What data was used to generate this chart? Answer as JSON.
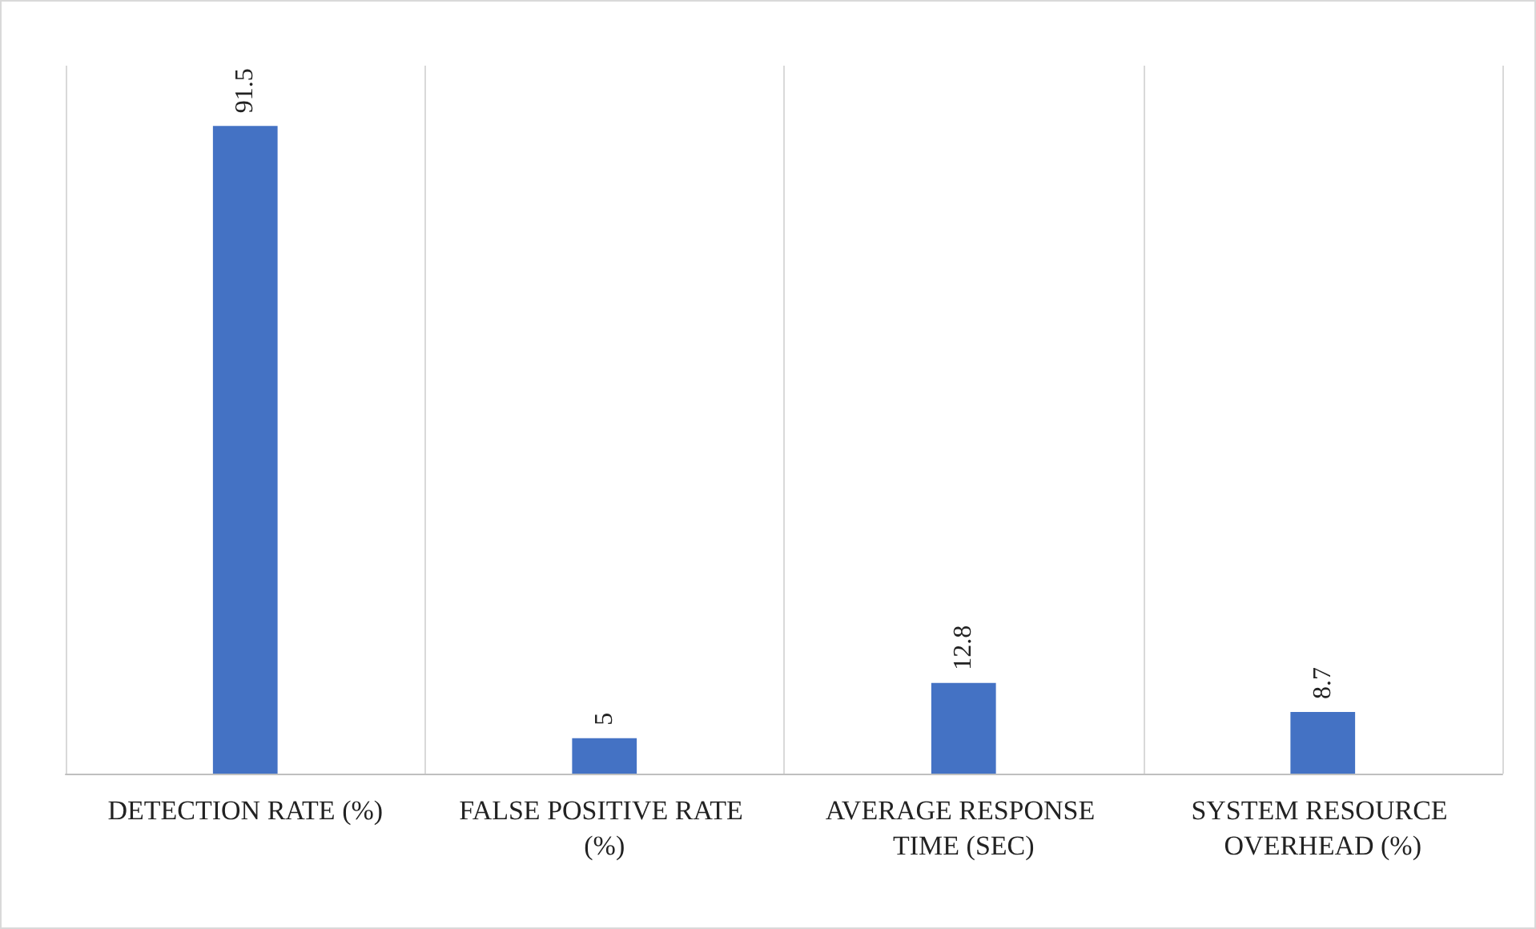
{
  "chart_data": {
    "type": "bar",
    "categories": [
      "DETECTION RATE (%)",
      "FALSE POSITIVE RATE (%)",
      "AVERAGE RESPONSE TIME (SEC)",
      "SYSTEM RESOURCE OVERHEAD (%)"
    ],
    "values": [
      91.5,
      5,
      12.8,
      8.7
    ],
    "color": "#4472c4",
    "ylim": [
      0,
      100
    ],
    "data_labels": true,
    "grid": "x",
    "tick_labels": "x"
  }
}
